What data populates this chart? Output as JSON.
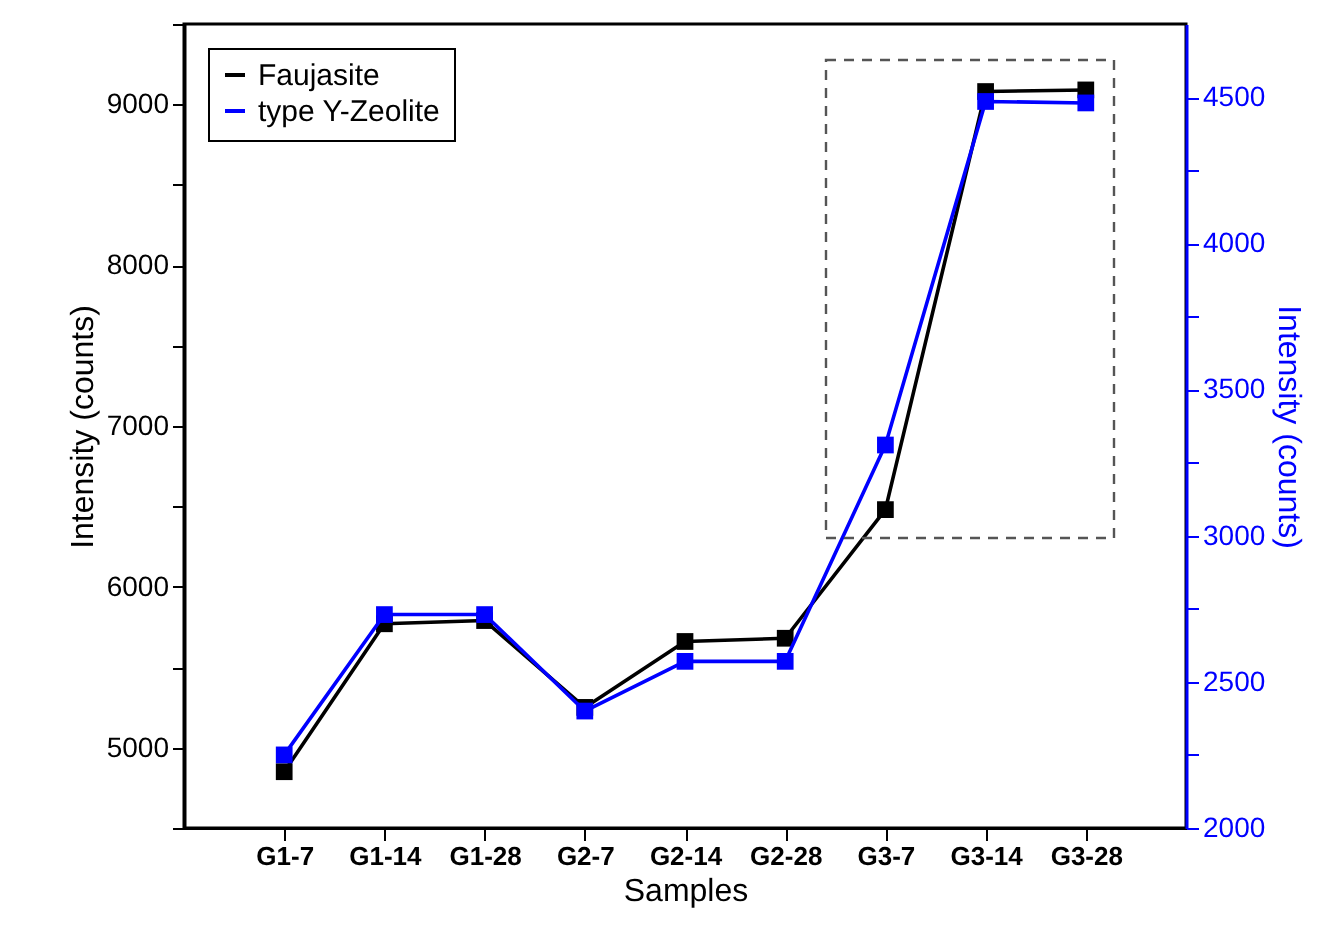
{
  "chart_data": {
    "type": "line",
    "xlabel": "Samples",
    "ylabel": "Intensity (counts)",
    "y2label": "Intensity (counts)",
    "categories": [
      "G1-7",
      "G1-14",
      "G1-28",
      "G2-7",
      "G2-14",
      "G2-28",
      "G3-7",
      "G3-14",
      "G3-28"
    ],
    "series": [
      {
        "name": "Faujasite",
        "color": "#000000",
        "values": [
          4850,
          5770,
          5790,
          5250,
          5660,
          5680,
          6480,
          9080,
          9090
        ]
      },
      {
        "name": "type Y-Zeolite",
        "color": "#0000ff",
        "axis": "y2",
        "values": [
          2250,
          2730,
          2730,
          2400,
          2570,
          2570,
          3310,
          4485,
          4480
        ]
      }
    ],
    "ylim": [
      4500,
      9500
    ],
    "yticks": [
      {
        "value": 4500,
        "label": null
      },
      5000,
      {
        "value": 5500,
        "label": null
      },
      6000,
      {
        "value": 6500,
        "label": null
      },
      7000,
      {
        "value": 7500,
        "label": null
      },
      8000,
      {
        "value": 8500,
        "label": null
      },
      9000,
      {
        "value": 9500,
        "label": null
      }
    ],
    "y2lim": [
      2000,
      4750
    ],
    "y2ticks": [
      2000,
      {
        "value": 2250,
        "label": null
      },
      2500,
      {
        "value": 2750,
        "label": null
      },
      3000,
      {
        "value": 3250,
        "label": null
      },
      3500,
      {
        "value": 3750,
        "label": null
      },
      4000,
      {
        "value": 4250,
        "label": null
      },
      4500
    ],
    "grid": false,
    "legend": "top left",
    "marker": "square",
    "line_style": "solid"
  }
}
